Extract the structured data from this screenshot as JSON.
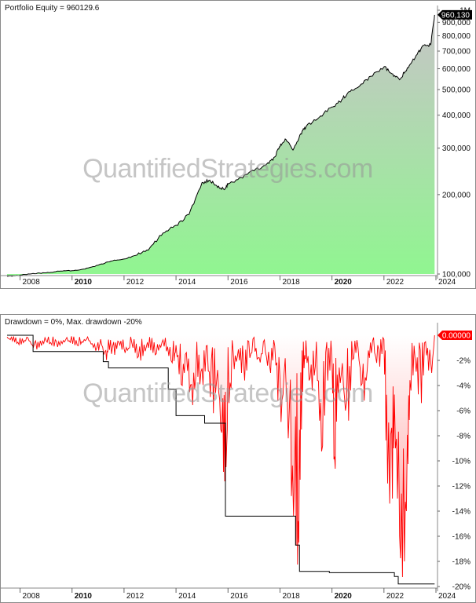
{
  "watermark": "QuantifiedStrategies.com",
  "chart_data": [
    {
      "type": "area",
      "title": "Portfolio Equity = 960129.6",
      "y_scale": "log",
      "ylim": [
        100000,
        1000000
      ],
      "xlim": [
        2007.5,
        2024.0
      ],
      "x_ticks": [
        {
          "year": 2008,
          "label": "2008",
          "bold": false
        },
        {
          "year": 2010,
          "label": "2010",
          "bold": true
        },
        {
          "year": 2012,
          "label": "2012",
          "bold": false
        },
        {
          "year": 2014,
          "label": "2014",
          "bold": false
        },
        {
          "year": 2016,
          "label": "2016",
          "bold": false
        },
        {
          "year": 2018,
          "label": "2018",
          "bold": false
        },
        {
          "year": 2020,
          "label": "2020",
          "bold": true
        },
        {
          "year": 2022,
          "label": "2022",
          "bold": false
        },
        {
          "year": 2024,
          "label": "2024",
          "bold": false
        }
      ],
      "y_ticks": [
        {
          "value": 1000000,
          "label": "1M"
        },
        {
          "value": 900000,
          "label": "900,000"
        },
        {
          "value": 800000,
          "label": "800,000"
        },
        {
          "value": 700000,
          "label": "700,000"
        },
        {
          "value": 600000,
          "label": "600,000"
        },
        {
          "value": 500000,
          "label": "500,000"
        },
        {
          "value": 400000,
          "label": "400,000"
        },
        {
          "value": 300000,
          "label": "300,000"
        },
        {
          "value": 200000,
          "label": "200,000"
        },
        {
          "value": 100000,
          "label": "100,000"
        }
      ],
      "last_value_label": "960,130",
      "series": [
        {
          "x": [
            2007.5,
            2008.0,
            2008.5,
            2009.0,
            2009.5,
            2010.0,
            2010.5,
            2011.0,
            2011.5,
            2012.0,
            2012.5,
            2013.0,
            2013.5,
            2014.0,
            2014.5,
            2015.0,
            2015.3,
            2015.6,
            2015.9,
            2016.0,
            2016.5,
            2017.0,
            2017.5,
            2017.8,
            2018.0,
            2018.2,
            2018.5,
            2018.8,
            2019.0,
            2019.5,
            2020.0,
            2020.3,
            2020.6,
            2021.0,
            2021.5,
            2022.0,
            2022.3,
            2022.6,
            2022.9,
            2023.2,
            2023.5,
            2023.8,
            2023.95
          ],
          "y": [
            98000,
            99000,
            100500,
            101000,
            102500,
            103000,
            104500,
            108000,
            112000,
            114000,
            118000,
            126000,
            143000,
            153000,
            168000,
            222000,
            227000,
            213000,
            211000,
            220000,
            232000,
            246000,
            262000,
            278000,
            304000,
            325000,
            295000,
            340000,
            362000,
            392000,
            430000,
            450000,
            485000,
            510000,
            562000,
            610000,
            575000,
            545000,
            605000,
            660000,
            735000,
            740000,
            960130
          ]
        }
      ]
    },
    {
      "type": "area",
      "title": "Drawdown = 0%, Max. drawdown -20%",
      "ylim": [
        -20,
        0
      ],
      "xlim": [
        2007.5,
        2024.0
      ],
      "x_ticks": [
        {
          "year": 2008,
          "label": "2008",
          "bold": false
        },
        {
          "year": 2010,
          "label": "2010",
          "bold": true
        },
        {
          "year": 2012,
          "label": "2012",
          "bold": false
        },
        {
          "year": 2014,
          "label": "2014",
          "bold": false
        },
        {
          "year": 2016,
          "label": "2016",
          "bold": false
        },
        {
          "year": 2018,
          "label": "2018",
          "bold": false
        },
        {
          "year": 2020,
          "label": "2020",
          "bold": true
        },
        {
          "year": 2022,
          "label": "2022",
          "bold": false
        },
        {
          "year": 2024,
          "label": "2024",
          "bold": false
        }
      ],
      "y_ticks": [
        {
          "value": -2,
          "label": "-2%"
        },
        {
          "value": -4,
          "label": "-4%"
        },
        {
          "value": -6,
          "label": "-6%"
        },
        {
          "value": -8,
          "label": "-8%"
        },
        {
          "value": -10,
          "label": "-10%"
        },
        {
          "value": -12,
          "label": "-12%"
        },
        {
          "value": -14,
          "label": "-14%"
        },
        {
          "value": -16,
          "label": "-16%"
        },
        {
          "value": -18,
          "label": "-18%"
        },
        {
          "value": -20,
          "label": "-20%"
        }
      ],
      "last_value_label": "0.00000",
      "series": [
        {
          "name": "Drawdown",
          "x": [
            2007.5,
            2008.0,
            2008.3,
            2008.6,
            2009.0,
            2009.4,
            2009.8,
            2010.2,
            2010.6,
            2011.0,
            2011.1,
            2011.3,
            2011.4,
            2011.6,
            2011.8,
            2012.0,
            2012.3,
            2012.6,
            2012.9,
            2013.2,
            2013.5,
            2013.9,
            2014.0,
            2014.2,
            2014.4,
            2014.6,
            2014.8,
            2015.0,
            2015.2,
            2015.4,
            2015.6,
            2015.8,
            2015.9,
            2016.0,
            2016.2,
            2016.4,
            2016.6,
            2016.8,
            2017.0,
            2017.2,
            2017.4,
            2017.6,
            2017.8,
            2018.0,
            2018.2,
            2018.4,
            2018.6,
            2018.7,
            2018.8,
            2018.9,
            2019.0,
            2019.2,
            2019.4,
            2019.6,
            2019.8,
            2020.0,
            2020.1,
            2020.2,
            2020.4,
            2020.6,
            2020.8,
            2021.0,
            2021.2,
            2021.4,
            2021.6,
            2021.8,
            2022.0,
            2022.1,
            2022.3,
            2022.4,
            2022.6,
            2022.75,
            2022.9,
            2023.0,
            2023.2,
            2023.4,
            2023.6,
            2023.8,
            2023.95
          ],
          "y": [
            -0.2,
            -0.8,
            -0.3,
            -1.2,
            -0.5,
            -1.0,
            -0.4,
            -0.9,
            -0.3,
            -1.5,
            -0.4,
            -2.3,
            -1.0,
            -1.8,
            -0.6,
            -1.5,
            -0.8,
            -2.2,
            -0.9,
            -1.6,
            -0.7,
            -2.4,
            -1.0,
            -4.5,
            -2.0,
            -6.2,
            -3.0,
            -4.5,
            -1.8,
            -7.0,
            -3.0,
            -10.5,
            -12.0,
            -6.0,
            -3.0,
            -1.5,
            -4.0,
            -2.0,
            -1.0,
            -2.5,
            -0.8,
            -3.5,
            -1.0,
            -8.0,
            -2.5,
            -12.0,
            -16.0,
            -19.0,
            -9.0,
            -3.0,
            -1.5,
            -5.0,
            -2.0,
            -10.0,
            -4.0,
            -2.0,
            -12.5,
            -5.0,
            -3.0,
            -8.0,
            -2.0,
            -1.0,
            -6.0,
            -2.0,
            -1.0,
            -3.0,
            -0.5,
            -11.0,
            -15.0,
            -7.0,
            -17.0,
            -20.0,
            -12.0,
            -5.0,
            -2.0,
            -6.5,
            -1.0,
            -4.0,
            0.0
          ]
        },
        {
          "name": "Max. drawdown",
          "x": [
            2007.5,
            2008.5,
            2008.5,
            2011.2,
            2011.2,
            2011.4,
            2011.4,
            2013.7,
            2013.7,
            2014.0,
            2014.0,
            2015.1,
            2015.1,
            2015.9,
            2015.9,
            2018.6,
            2018.6,
            2018.75,
            2018.75,
            2019.9,
            2019.9,
            2022.4,
            2022.4,
            2022.55,
            2022.55,
            2023.95
          ],
          "y": [
            0.0,
            0.0,
            -1.3,
            -1.3,
            -2.1,
            -2.1,
            -2.6,
            -2.6,
            -4.3,
            -4.3,
            -6.4,
            -6.4,
            -7.0,
            -7.0,
            -14.4,
            -14.4,
            -16.7,
            -16.7,
            -18.8,
            -18.8,
            -18.9,
            -18.9,
            -19.2,
            -19.2,
            -19.8,
            -19.8
          ]
        }
      ]
    }
  ]
}
